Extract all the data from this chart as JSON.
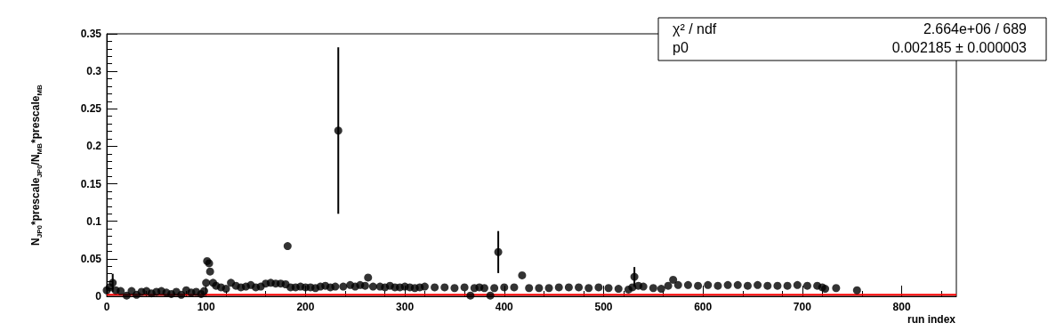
{
  "chart_data": {
    "type": "scatter",
    "xlabel": "run index",
    "ylabel": "N$_{JP0}$*prescale$_{JP0}$/N$_{MB}$*prescale$_{MB}$",
    "annotations": [
      "χ² / ndf",
      "2.664e+06 / 689",
      "p0",
      "0.002185 ± 0.000003"
    ],
    "xlim": [
      0,
      855
    ],
    "xticks": [
      0,
      100,
      200,
      300,
      400,
      500,
      600,
      700,
      800
    ],
    "ylim": [
      0,
      0.35
    ],
    "yticks": [
      0,
      0.05,
      0.1,
      0.15,
      0.2,
      0.25,
      0.3,
      0.35
    ],
    "marker": "circle",
    "series": [
      {
        "color": "#000000",
        "x": [
          0,
          3,
          6,
          9,
          14,
          20,
          25,
          30,
          35,
          40,
          45,
          50,
          55,
          60,
          65,
          70,
          75,
          80,
          85,
          90,
          95,
          98,
          100,
          101,
          103,
          104,
          107,
          110,
          115,
          120,
          125,
          130,
          135,
          140,
          145,
          150,
          155,
          160,
          165,
          170,
          175,
          180,
          182,
          185,
          190,
          195,
          200,
          205,
          210,
          215,
          220,
          225,
          230,
          233,
          238,
          245,
          250,
          255,
          260,
          263,
          268,
          275,
          280,
          285,
          290,
          295,
          300,
          305,
          310,
          315,
          320,
          330,
          340,
          350,
          360,
          366,
          370,
          375,
          380,
          386,
          390,
          394,
          400,
          410,
          418,
          425,
          435,
          445,
          455,
          465,
          475,
          485,
          495,
          505,
          515,
          525,
          529,
          531,
          535,
          540,
          550,
          558,
          565,
          570,
          575,
          585,
          595,
          605,
          615,
          625,
          635,
          645,
          655,
          665,
          675,
          685,
          695,
          705,
          715,
          720,
          723,
          734,
          755
        ],
        "values": [
          0.008,
          0.012,
          0.018,
          0.008,
          0.007,
          0.001,
          0.007,
          0.002,
          0.006,
          0.007,
          0.004,
          0.006,
          0.007,
          0.005,
          0.003,
          0.006,
          0.002,
          0.008,
          0.005,
          0.006,
          0.003,
          0.007,
          0.018,
          0.047,
          0.044,
          0.033,
          0.018,
          0.014,
          0.012,
          0.01,
          0.018,
          0.014,
          0.012,
          0.013,
          0.015,
          0.012,
          0.013,
          0.017,
          0.018,
          0.017,
          0.017,
          0.016,
          0.067,
          0.012,
          0.012,
          0.013,
          0.012,
          0.012,
          0.011,
          0.013,
          0.014,
          0.012,
          0.013,
          0.221,
          0.013,
          0.015,
          0.013,
          0.015,
          0.014,
          0.025,
          0.013,
          0.013,
          0.012,
          0.014,
          0.012,
          0.012,
          0.013,
          0.012,
          0.011,
          0.012,
          0.013,
          0.012,
          0.012,
          0.011,
          0.012,
          0.001,
          0.011,
          0.012,
          0.011,
          0.001,
          0.011,
          0.059,
          0.012,
          0.012,
          0.028,
          0.011,
          0.011,
          0.011,
          0.012,
          0.012,
          0.012,
          0.011,
          0.012,
          0.011,
          0.01,
          0.009,
          0.012,
          0.026,
          0.014,
          0.013,
          0.011,
          0.01,
          0.014,
          0.022,
          0.015,
          0.015,
          0.014,
          0.015,
          0.014,
          0.015,
          0.015,
          0.014,
          0.015,
          0.014,
          0.014,
          0.014,
          0.015,
          0.014,
          0.014,
          0.012,
          0.01,
          0.011,
          0.008
        ],
        "errors": [
          null,
          null,
          0.012,
          null,
          null,
          null,
          null,
          null,
          null,
          null,
          null,
          null,
          null,
          null,
          null,
          null,
          null,
          null,
          null,
          null,
          null,
          null,
          null,
          null,
          null,
          null,
          null,
          null,
          null,
          null,
          null,
          null,
          null,
          null,
          null,
          null,
          null,
          null,
          null,
          null,
          null,
          null,
          null,
          null,
          null,
          null,
          null,
          null,
          null,
          null,
          null,
          null,
          null,
          0.111,
          null,
          null,
          null,
          null,
          null,
          null,
          null,
          null,
          null,
          null,
          null,
          null,
          null,
          null,
          null,
          null,
          null,
          null,
          null,
          null,
          null,
          null,
          null,
          null,
          null,
          null,
          null,
          0.028,
          null,
          null,
          null,
          null,
          null,
          null,
          null,
          null,
          null,
          null,
          null,
          null,
          null,
          null,
          null,
          0.013,
          null,
          null,
          null,
          null,
          null,
          null,
          null,
          null,
          null,
          null,
          null,
          null,
          null,
          null,
          null,
          null,
          null,
          null,
          null,
          null,
          null,
          null,
          null,
          null,
          null
        ]
      },
      {
        "type": "line",
        "marker": "none",
        "color": "#ff0000",
        "x": [
          0,
          855
        ],
        "values": [
          0.002185,
          0.002185
        ]
      }
    ]
  }
}
